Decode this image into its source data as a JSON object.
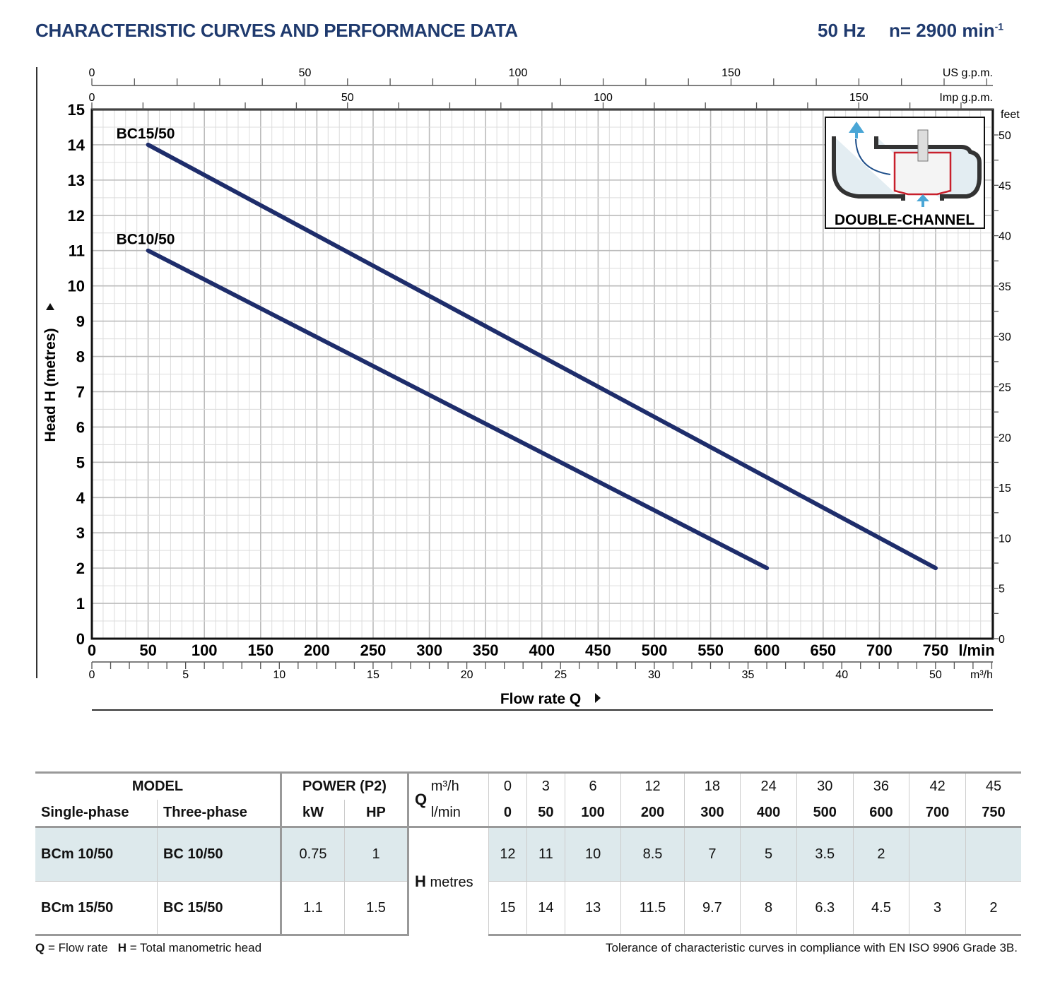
{
  "header": {
    "title": "CHARACTERISTIC CURVES AND PERFORMANCE DATA",
    "frequency": "50 Hz",
    "speed": "n= 2900 min",
    "speed_exp": "-1"
  },
  "chart_data": {
    "type": "line",
    "xlabel": "Flow rate Q",
    "ylabel": "Head H  (metres)",
    "xlim": [
      0,
      750
    ],
    "ylim": [
      0,
      15
    ],
    "x_unit": "l/min",
    "x_ticks": [
      0,
      50,
      100,
      150,
      200,
      250,
      300,
      350,
      400,
      450,
      500,
      550,
      600,
      650,
      700,
      750
    ],
    "y_ticks": [
      0,
      1,
      2,
      3,
      4,
      5,
      6,
      7,
      8,
      9,
      10,
      11,
      12,
      13,
      14,
      15
    ],
    "secondary_axes": {
      "us_gpm": {
        "label": "US g.p.m.",
        "ticks": [
          0,
          50,
          100,
          150
        ]
      },
      "imp_gpm": {
        "label": "Imp g.p.m.",
        "ticks": [
          0,
          50,
          100,
          150
        ]
      },
      "m3h": {
        "label": "m³/h",
        "ticks": [
          0,
          5,
          10,
          15,
          20,
          25,
          30,
          35,
          40,
          50
        ]
      },
      "feet": {
        "label": "feet",
        "ticks": [
          0,
          5,
          10,
          15,
          20,
          25,
          30,
          35,
          40,
          45,
          50
        ]
      }
    },
    "grid": true,
    "series": [
      {
        "name": "BC15/50",
        "x": [
          50,
          750
        ],
        "y": [
          14,
          2
        ],
        "color": "#1e2d6b"
      },
      {
        "name": "BC10/50",
        "x": [
          50,
          600
        ],
        "y": [
          11,
          2
        ],
        "color": "#1e2d6b"
      }
    ],
    "inset_label": "DOUBLE-CHANNEL"
  },
  "table": {
    "model": "MODEL",
    "single_phase": "Single-phase",
    "three_phase": "Three-phase",
    "power": "POWER (P2)",
    "kw": "kW",
    "hp": "HP",
    "q": "Q",
    "m3h": "m³/h",
    "lmin": "l/min",
    "h": "H",
    "metres": "metres",
    "m3h_values": [
      "0",
      "3",
      "6",
      "12",
      "18",
      "24",
      "30",
      "36",
      "42",
      "45"
    ],
    "lmin_values": [
      "0",
      "50",
      "100",
      "200",
      "300",
      "400",
      "500",
      "600",
      "700",
      "750"
    ],
    "rows": [
      {
        "single": "BCm 10/50",
        "three": "BC 10/50",
        "kw": "0.75",
        "hp": "1",
        "h": [
          "12",
          "11",
          "10",
          "8.5",
          "7",
          "5",
          "3.5",
          "2",
          "",
          ""
        ]
      },
      {
        "single": "BCm 15/50",
        "three": "BC 15/50",
        "kw": "1.1",
        "hp": "1.5",
        "h": [
          "15",
          "14",
          "13",
          "11.5",
          "9.7",
          "8",
          "6.3",
          "4.5",
          "3",
          "2"
        ]
      }
    ]
  },
  "footer": {
    "q_key": "Q",
    "q_text": " = Flow rate",
    "h_key": "H",
    "h_text": " = Total manometric head",
    "tolerance": "Tolerance of characteristic curves in compliance with EN ISO 9906 Grade 3B."
  }
}
